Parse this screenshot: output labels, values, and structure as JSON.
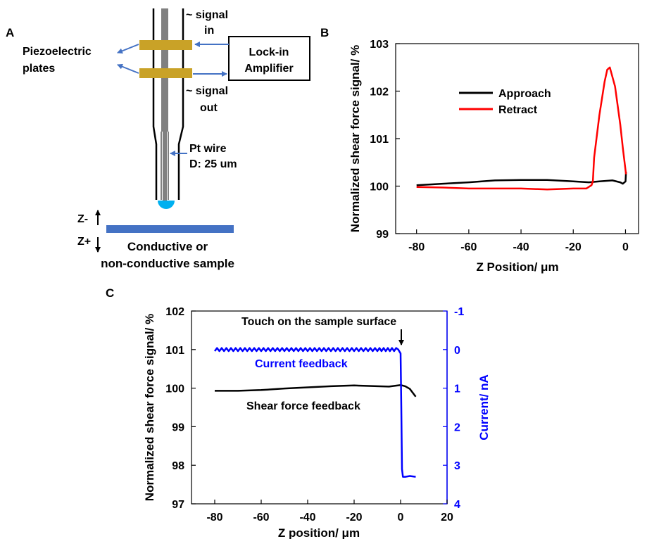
{
  "colors": {
    "approach": "#000000",
    "retract": "#ff0000",
    "current": "#0000ff",
    "plate": "#c9a227",
    "arrow": "#4472c4",
    "sample": "#4472c4",
    "tip_drop": "#00b0f0",
    "rod": "#808080"
  },
  "panel_a": {
    "label": "A",
    "piezo_label_1": "Piezoelectric",
    "piezo_label_2": "plates",
    "signal_in_1": "~ signal",
    "signal_in_2": "in",
    "signal_out_1": "~ signal",
    "signal_out_2": "out",
    "amplifier_1": "Lock-in",
    "amplifier_2": "Amplifier",
    "wire_1": "Pt wire",
    "wire_2": "D: 25 um",
    "z_minus": "Z-",
    "z_plus": "Z+",
    "sample_1": "Conductive or",
    "sample_2": "non-conductive sample"
  },
  "panel_b": {
    "label": "B",
    "ylabel": "Normalized shear force signal/ %",
    "xlabel": "Z Position/ μm",
    "legend": [
      "Approach",
      "Retract"
    ]
  },
  "panel_c": {
    "label": "C",
    "ylabel": "Normalized shear force signal/ %",
    "y2label": "Current/ nA",
    "xlabel": "Z position/ μm",
    "annotation_touch": "Touch on the sample surface",
    "annotation_current": "Current feedback",
    "annotation_shear": "Shear force feedback"
  },
  "chart_data": [
    {
      "type": "line",
      "panel": "B",
      "xlabel": "Z Position/ μm",
      "ylabel": "Normalized shear force signal/ %",
      "xlim": [
        -88,
        5
      ],
      "ylim": [
        99,
        103
      ],
      "xticks": [
        -80,
        -60,
        -40,
        -20,
        0
      ],
      "yticks": [
        99,
        100,
        101,
        102,
        103
      ],
      "legend_position": "top-center",
      "series": [
        {
          "name": "Approach",
          "color": "#000000",
          "x": [
            -80,
            -70,
            -60,
            -50,
            -40,
            -30,
            -20,
            -14,
            -10,
            -5,
            -2,
            -1,
            0,
            0.2
          ],
          "y": [
            100.02,
            100.05,
            100.08,
            100.12,
            100.13,
            100.13,
            100.1,
            100.08,
            100.1,
            100.12,
            100.08,
            100.05,
            100.1,
            100.3
          ]
        },
        {
          "name": "Retract",
          "color": "#ff0000",
          "x": [
            0.2,
            -1,
            -2,
            -4,
            -6,
            -7,
            -8,
            -10,
            -12,
            -12.5,
            -13,
            -15,
            -20,
            -30,
            -40,
            -50,
            -60,
            -70,
            -80
          ],
          "y": [
            100.25,
            100.8,
            101.3,
            102.1,
            102.5,
            102.45,
            102.2,
            101.5,
            100.6,
            100.1,
            100.02,
            99.95,
            99.95,
            99.93,
            99.95,
            99.95,
            99.95,
            99.97,
            99.98
          ]
        }
      ]
    },
    {
      "type": "line",
      "panel": "C",
      "xlabel": "Z position/ μm",
      "ylabel": "Normalized shear force signal/ %",
      "y2label": "Current/ nA",
      "xlim": [
        -90,
        20
      ],
      "ylim": [
        97,
        102
      ],
      "y2lim": [
        -1,
        4
      ],
      "y2_inverted": true,
      "xticks": [
        -80,
        -60,
        -40,
        -20,
        0,
        20
      ],
      "yticks": [
        97,
        98,
        99,
        100,
        101,
        102
      ],
      "y2ticks": [
        -1,
        0,
        1,
        2,
        3,
        4
      ],
      "series": [
        {
          "name": "Shear force feedback",
          "axis": "left",
          "color": "#000000",
          "x": [
            -80,
            -70,
            -60,
            -50,
            -40,
            -30,
            -20,
            -10,
            -5,
            0,
            2,
            4,
            5,
            6.5
          ],
          "y": [
            99.93,
            99.93,
            99.95,
            99.99,
            100.02,
            100.05,
            100.07,
            100.05,
            100.04,
            100.08,
            100.05,
            99.98,
            99.9,
            99.78
          ]
        },
        {
          "name": "Current feedback",
          "axis": "right",
          "color": "#0000ff",
          "x": [
            -80,
            -70,
            -60,
            -50,
            -40,
            -30,
            -20,
            -10,
            -1,
            0,
            0.3,
            0.6,
            1,
            2,
            4,
            6.5
          ],
          "y": [
            0,
            0,
            0,
            0,
            0,
            0,
            0,
            0,
            0,
            0.1,
            1.5,
            3.1,
            3.3,
            3.3,
            3.28,
            3.3
          ]
        }
      ]
    }
  ]
}
